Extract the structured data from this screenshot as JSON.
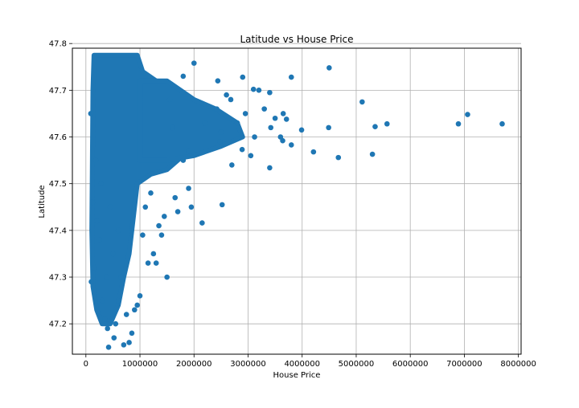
{
  "chart_data": {
    "type": "scatter",
    "title": "Latitude vs House Price",
    "xlabel": "House Price",
    "ylabel": "Latitude",
    "xlim": [
      -250000,
      8050000
    ],
    "ylim": [
      47.135,
      47.79
    ],
    "xticks": [
      0,
      1000000,
      2000000,
      3000000,
      4000000,
      5000000,
      6000000,
      7000000,
      8000000
    ],
    "xtick_labels": [
      "0",
      "1000000",
      "2000000",
      "3000000",
      "4000000",
      "5000000",
      "6000000",
      "7000000",
      "8000000"
    ],
    "yticks": [
      47.2,
      47.3,
      47.4,
      47.5,
      47.6,
      47.7,
      47.8
    ],
    "ytick_labels": [
      "47.2",
      "47.3",
      "47.4",
      "47.5",
      "47.6",
      "47.7",
      "47.8"
    ],
    "grid": true,
    "color": "#1f77b4",
    "series": [
      {
        "x": [
          7700000,
          7060000,
          6890000,
          5570000,
          5350000,
          5300000,
          5110000,
          4670000,
          4500000,
          4490000,
          4210000,
          3990000,
          3800000,
          3800000,
          3710000,
          3650000,
          3640000,
          3600000,
          3400000,
          3400000,
          3420000,
          3200000,
          3120000,
          3100000,
          3050000,
          2950000,
          2900000,
          2890000,
          2700000,
          2680000,
          2520000,
          2480000,
          2440000,
          2420000,
          2150000,
          2000000,
          1950000,
          1900000,
          1800000,
          1700000,
          1650000,
          1600000,
          1550000,
          1500000,
          1450000,
          1400000,
          1350000,
          1300000,
          1250000,
          1200000,
          1150000,
          1100000,
          1050000,
          1000000,
          950000,
          900000,
          850000,
          800000,
          750000,
          700000,
          650000,
          600000,
          600000,
          550000,
          520000,
          500000,
          450000,
          420000,
          400000,
          380000,
          350000,
          300000,
          280000,
          250000,
          200000,
          180000,
          150000,
          120000,
          100000,
          90000,
          1800000,
          1900000,
          2200000,
          2500000,
          2600000,
          2800000,
          3300000,
          3500000
        ],
        "y": [
          47.628,
          47.648,
          47.628,
          47.628,
          47.622,
          47.563,
          47.675,
          47.556,
          47.748,
          47.62,
          47.568,
          47.615,
          47.728,
          47.583,
          47.638,
          47.65,
          47.592,
          47.6,
          47.534,
          47.695,
          47.62,
          47.7,
          47.6,
          47.702,
          47.56,
          47.65,
          47.728,
          47.573,
          47.54,
          47.68,
          47.455,
          47.59,
          47.72,
          47.66,
          47.416,
          47.758,
          47.45,
          47.49,
          47.55,
          47.44,
          47.47,
          47.62,
          47.68,
          47.3,
          47.43,
          47.39,
          47.41,
          47.33,
          47.35,
          47.48,
          47.33,
          47.45,
          47.39,
          47.26,
          47.24,
          47.23,
          47.18,
          47.16,
          47.22,
          47.155,
          47.3,
          47.25,
          47.4,
          47.2,
          47.17,
          47.35,
          47.45,
          47.15,
          47.19,
          47.3,
          47.21,
          47.25,
          47.5,
          47.38,
          47.42,
          47.55,
          47.32,
          47.46,
          47.29,
          47.65,
          47.73,
          47.57,
          47.63,
          47.61,
          47.69,
          47.63,
          47.66,
          47.64
        ]
      }
    ]
  }
}
